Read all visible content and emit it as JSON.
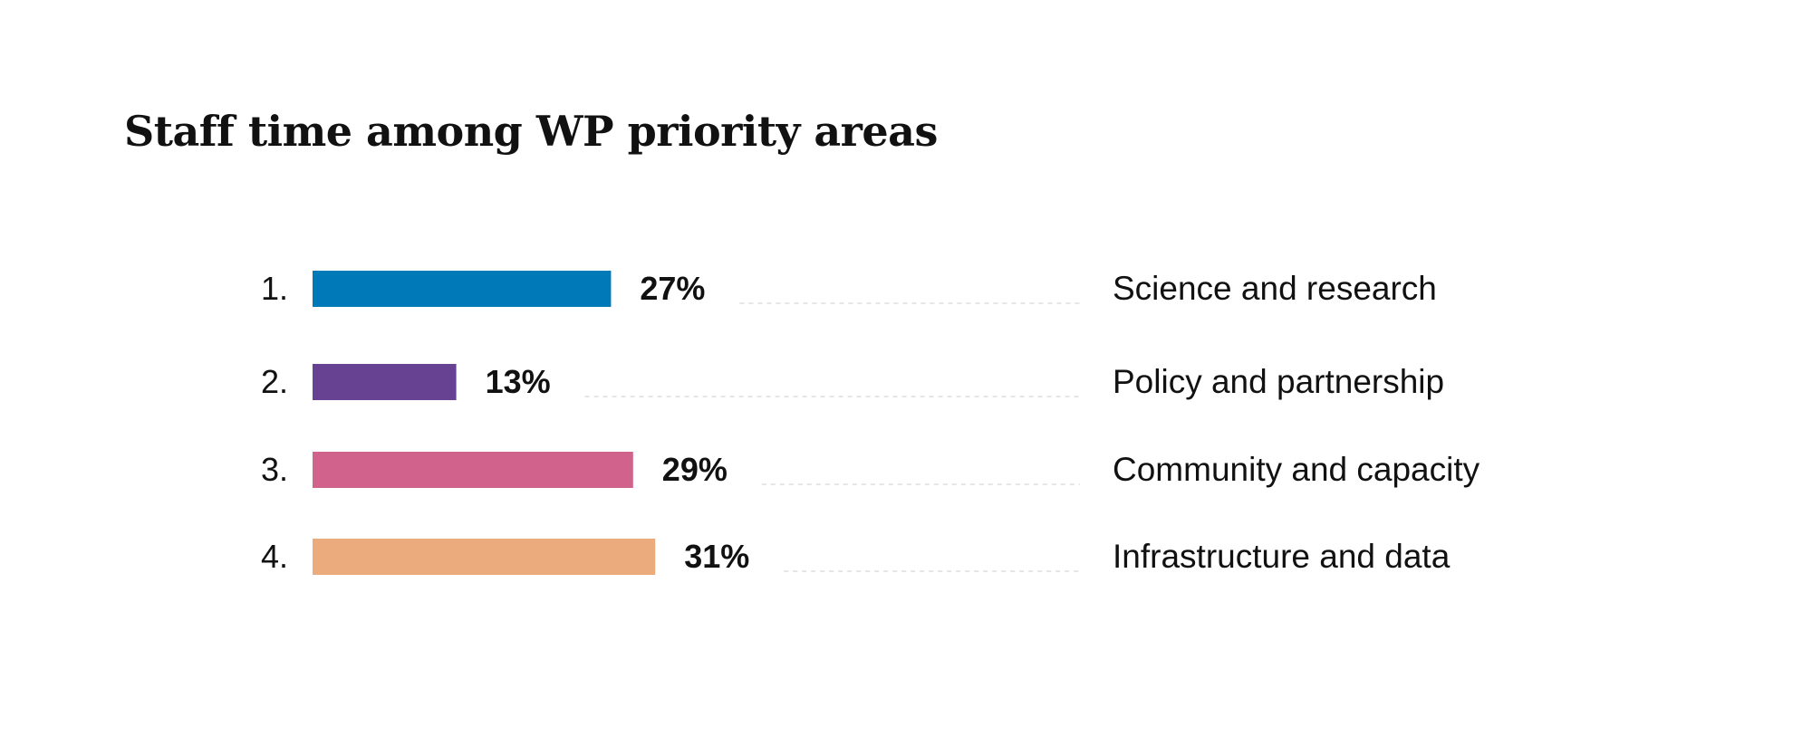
{
  "chart_data": {
    "type": "bar",
    "title": "Staff time among WP priority areas",
    "xlabel": "",
    "ylabel": "",
    "xlim": [
      0,
      100
    ],
    "value_suffix": "%",
    "rank_labels": [
      "1.",
      "2.",
      "3.",
      "4."
    ],
    "categories": [
      "Science and research",
      "Policy and partnership",
      "Community and capacity",
      "Infrastructure and data"
    ],
    "values": [
      27,
      13,
      29,
      31
    ],
    "data_labels": [
      "27%",
      "13%",
      "29%",
      "31%"
    ],
    "colors": [
      "#0079b8",
      "#684292",
      "#d1628c",
      "#ebab7c"
    ],
    "grid": false,
    "legend": "none"
  }
}
